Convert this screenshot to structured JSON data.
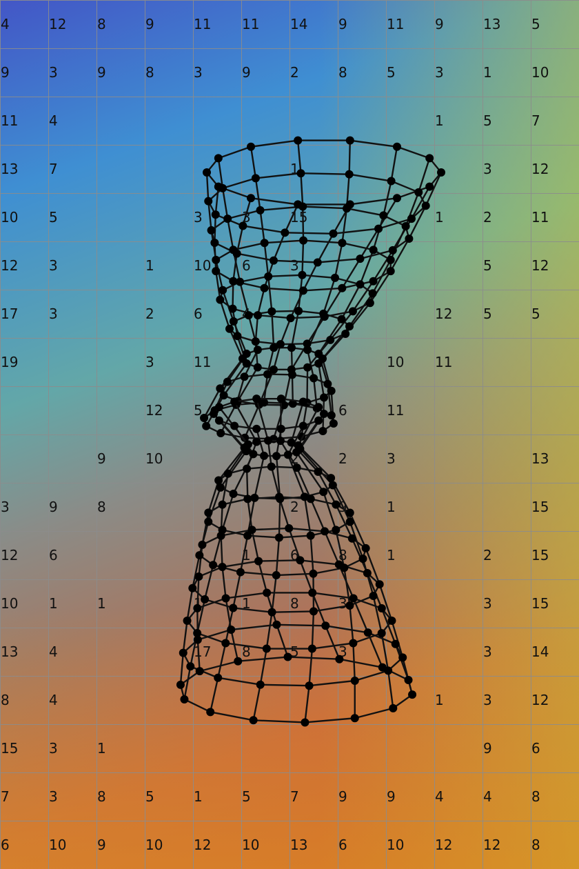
{
  "grid": {
    "rows": [
      [
        "4",
        "12",
        "8",
        "9",
        "11",
        "11",
        "14",
        "9",
        "11",
        "9",
        "13",
        "5"
      ],
      [
        "9",
        "3",
        "9",
        "8",
        "3",
        "9",
        "2",
        "8",
        "5",
        "3",
        "1",
        "10"
      ],
      [
        "11",
        "4",
        "",
        "",
        "",
        "",
        "",
        "",
        "",
        "1",
        "5",
        "7"
      ],
      [
        "13",
        "7",
        "",
        "",
        "",
        "",
        "1",
        "",
        "",
        "",
        "3",
        "12"
      ],
      [
        "10",
        "5",
        "",
        "",
        "3",
        "3",
        "15",
        "",
        "",
        "1",
        "2",
        "11"
      ],
      [
        "12",
        "3",
        "",
        "1",
        "10",
        "6",
        "3",
        "",
        "",
        "",
        "5",
        "12"
      ],
      [
        "17",
        "3",
        "",
        "2",
        "6",
        "4",
        "",
        "",
        "",
        "12",
        "5",
        "5"
      ],
      [
        "19",
        "",
        "",
        "3",
        "11",
        "",
        "",
        "",
        "10",
        "11",
        "",
        ""
      ],
      [
        "",
        "",
        "",
        "12",
        "5",
        "",
        "",
        "6",
        "11",
        "",
        "",
        ""
      ],
      [
        "",
        "",
        "9",
        "10",
        "",
        "",
        "2",
        "2",
        "3",
        "",
        "",
        "13"
      ],
      [
        "3",
        "9",
        "8",
        "",
        "",
        "",
        "2",
        "9",
        "1",
        "",
        "",
        "15"
      ],
      [
        "12",
        "6",
        "",
        "",
        "",
        "1",
        "6",
        "8",
        "1",
        "",
        "2",
        "15"
      ],
      [
        "10",
        "1",
        "1",
        "",
        "1",
        "1",
        "8",
        "3",
        "",
        "",
        "3",
        "15"
      ],
      [
        "13",
        "4",
        "",
        "",
        "17",
        "8",
        "5",
        "3",
        "",
        "",
        "3",
        "14"
      ],
      [
        "8",
        "4",
        "",
        "",
        "",
        "",
        "",
        "",
        "",
        "1",
        "3",
        "12"
      ],
      [
        "15",
        "3",
        "1",
        "",
        "",
        "",
        "",
        "",
        "",
        "",
        "9",
        "6"
      ],
      [
        "7",
        "3",
        "8",
        "5",
        "1",
        "5",
        "7",
        "9",
        "9",
        "4",
        "4",
        "8"
      ],
      [
        "6",
        "10",
        "9",
        "10",
        "12",
        "10",
        "13",
        "6",
        "10",
        "12",
        "12",
        "8"
      ]
    ]
  },
  "mesh": {
    "icon": "hyperboloid-wireframe",
    "stroke": "#111111",
    "node_fill": "#000000"
  }
}
